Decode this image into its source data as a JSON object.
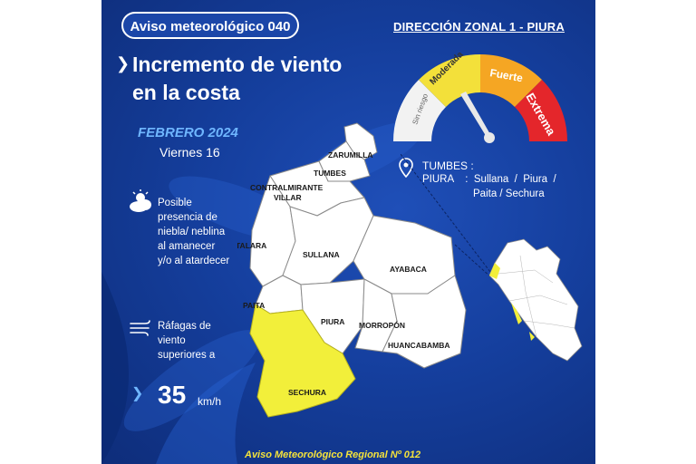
{
  "header": {
    "badge": "Aviso meteorológico 040",
    "zone": "DIRECCIÓN ZONAL 1 - PIURA"
  },
  "headline": "Incremento de viento en la costa",
  "date": {
    "month_year": "FEBRERO 2024",
    "day": "Viernes 16"
  },
  "conditions": {
    "fog": "Posible presencia de niebla/ neblina al amanecer y/o al atardecer",
    "wind": "Ráfagas de viento superiores a",
    "speed_value": "35",
    "speed_unit": "km/h"
  },
  "gauge": {
    "levels": [
      {
        "label": "Sin riesgo",
        "color": "#f2f2f2"
      },
      {
        "label": "Moderada",
        "color": "#f3e03a"
      },
      {
        "label": "Fuerte",
        "color": "#f5a623"
      },
      {
        "label": "Extrema",
        "color": "#e4262b"
      }
    ],
    "needle_level": "Moderada"
  },
  "locations": {
    "line1": "TUMBES :",
    "line2": "PIURA    :  Sullana  /  Piura  /",
    "line3": "Paita / Sechura"
  },
  "map": {
    "regions": [
      "ZARUMILLA",
      "TUMBES",
      "CONTRALMIRANTE",
      "VILLAR",
      "TALARA",
      "SULLANA",
      "AYABACA",
      "PAITA",
      "PIURA",
      "MORROPÓN",
      "HUANCABAMBA",
      "SECHURA"
    ],
    "highlight_color": "#f2ef3a",
    "base_color": "#ffffff"
  },
  "footer": "Aviso Meteorológico Regional Nº 012"
}
